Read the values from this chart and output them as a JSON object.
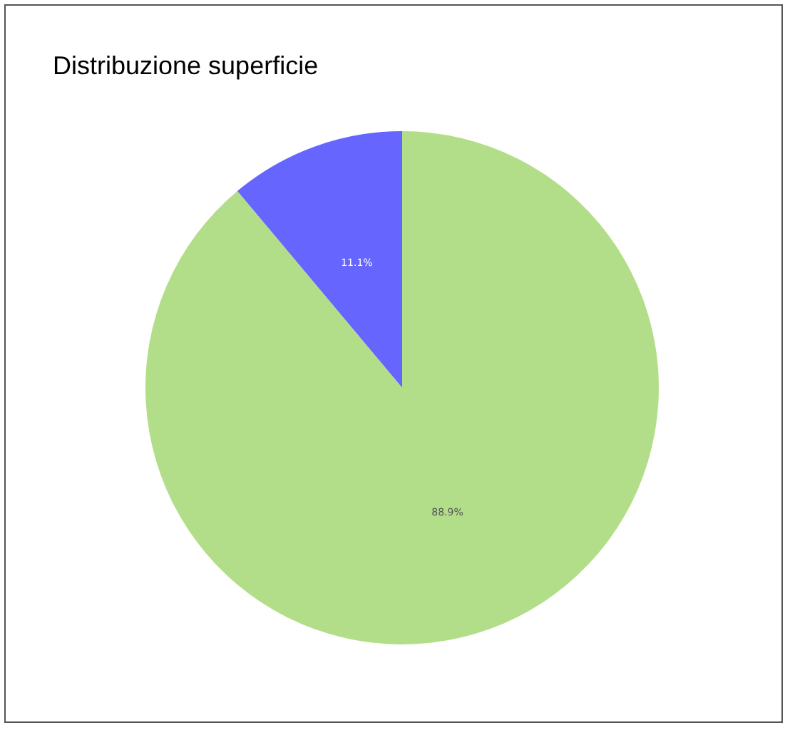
{
  "chart_data": {
    "type": "pie",
    "title": "Distribuzione superficie",
    "categories": [
      null,
      null
    ],
    "values": [
      11.1,
      88.9
    ],
    "colors": [
      "#6666ff",
      "#b3de89"
    ],
    "value_labels": [
      "11.1%",
      "88.9%"
    ]
  }
}
